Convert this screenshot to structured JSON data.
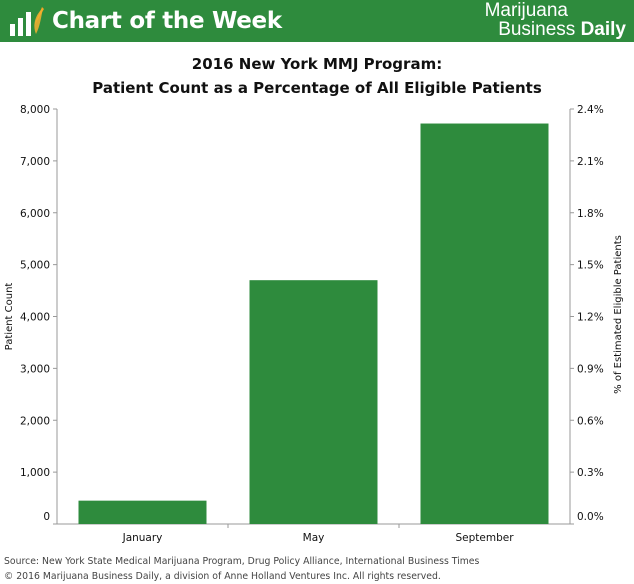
{
  "header": {
    "title": "Chart of the Week",
    "brand_line1": "Marijuana",
    "brand_line2_a": "Business",
    "brand_line2_b": "Daily",
    "logo_icon": "bar-chart-leaf-icon",
    "background_color": "#2e8b3d"
  },
  "chart_data": {
    "type": "bar",
    "title": "2016 New York MMJ Program:",
    "subtitle": "Patient Count as a Percentage of All Eligible Patients",
    "categories": [
      "January",
      "May",
      "September"
    ],
    "values": [
      450,
      4700,
      7720
    ],
    "ylabel": "Patient Count",
    "y2label": "% of Estimated Eligible Patients",
    "ylim": [
      0,
      8000
    ],
    "yticks": [
      "0",
      "1,000",
      "2,000",
      "3,000",
      "4,000",
      "5,000",
      "6,000",
      "7,000",
      "8,000"
    ],
    "y2lim": [
      0,
      2.4
    ],
    "y2ticks": [
      "0.0%",
      "0.3%",
      "0.6%",
      "0.9%",
      "1.2%",
      "1.5%",
      "1.8%",
      "2.1%",
      "2.4%"
    ],
    "bar_color": "#2e8b3d",
    "grid": false,
    "legend": "none"
  },
  "footer": {
    "source": "Source: New York State Medical Marijuana Program, Drug Policy Alliance, International Business Times",
    "copyright": "© 2016 Marijuana Business Daily, a division of Anne Holland Ventures Inc. All rights reserved."
  }
}
